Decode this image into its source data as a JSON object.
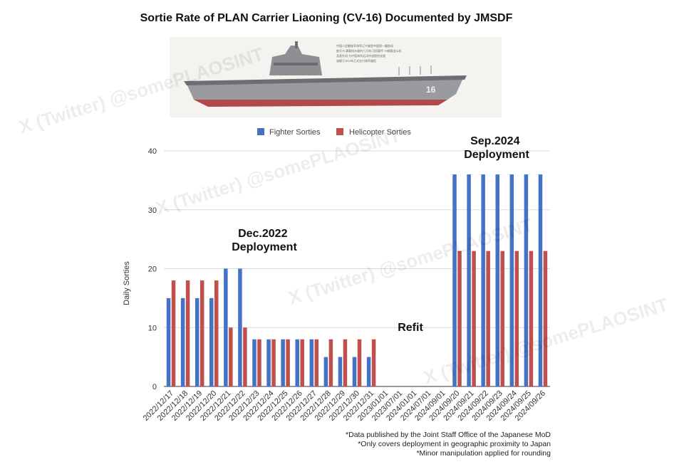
{
  "chart_data": {
    "type": "bar",
    "title": "Sortie Rate of PLAN Carrier Liaoning (CV-16) Documented by JMSDF",
    "xlabel": "",
    "ylabel": "Daily Sorties",
    "ylim": [
      0,
      40
    ],
    "yticks": [
      0,
      10,
      20,
      30,
      40
    ],
    "categories": [
      "2022/12/17",
      "2022/12/18",
      "2022/12/19",
      "2022/12/20",
      "2022/12/21",
      "2022/12/22",
      "2022/12/23",
      "2022/12/24",
      "2022/12/25",
      "2022/12/26",
      "2022/12/27",
      "2022/12/28",
      "2022/12/29",
      "2022/12/30",
      "2022/12/31",
      "2023/01/01",
      "2023/07/01",
      "2024/01/01",
      "2024/07/01",
      "2024/09/01",
      "2024/09/20",
      "2024/09/21",
      "2024/09/22",
      "2024/09/23",
      "2024/09/24",
      "2024/09/25",
      "2024/09/26"
    ],
    "series": [
      {
        "name": "Fighter Sorties",
        "color": "#4472c4",
        "values": [
          15,
          15,
          15,
          15,
          20,
          20,
          8,
          8,
          8,
          8,
          8,
          5,
          5,
          5,
          5,
          0,
          0,
          0,
          0,
          0,
          36,
          36,
          36,
          36,
          36,
          36,
          36
        ]
      },
      {
        "name": "Helicopter Sorties",
        "color": "#c0504d",
        "values": [
          18,
          18,
          18,
          18,
          10,
          10,
          8,
          8,
          8,
          8,
          8,
          8,
          8,
          8,
          8,
          0,
          0,
          0,
          0,
          0,
          23,
          23,
          23,
          23,
          23,
          23,
          23
        ]
      }
    ],
    "legend_position": "top-center",
    "annotations": [
      {
        "text": [
          "Dec.2022",
          "Deployment"
        ]
      },
      {
        "text": [
          "Refit"
        ]
      },
      {
        "text": [
          "Sep.2024",
          "Deployment"
        ]
      }
    ]
  },
  "notes": [
    "*Data published by the Joint Staff Office of the Japanese MoD",
    "*Only covers deployment in geographic proximity to Japan",
    "*Minor manipulation applied for rounding"
  ],
  "watermark": "X (Twitter) @somePLAOSINT",
  "ship_image": {
    "hull_number": "16",
    "caption_lines": [
      "中国人民解放军海军辽宁舰是中国第一艘航母",
      "舷号16 满载排水量约六万吨 可搭载歼-15舰载战斗机",
      "及直升机 为中国海军远洋作战提供支援",
      "该舰于2012年正式交付海军服役"
    ]
  }
}
